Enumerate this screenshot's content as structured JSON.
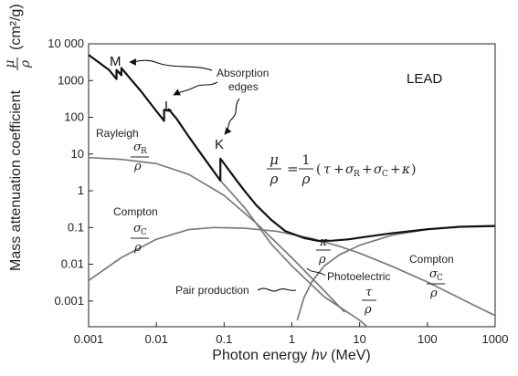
{
  "chart_data": {
    "type": "line",
    "title": "",
    "panel_label": "LEAD",
    "xlabel_prefix": "Photon energy ",
    "xlabel_symbol": "hν",
    "xlabel_unit": " (MeV)",
    "ylabel_text": "Mass attenuation coefficient",
    "ylabel_unit": "(cm²/g)",
    "symbols": {
      "mu": "μ",
      "rho": "ρ",
      "tau": "τ",
      "kappa": "κ",
      "sigma": "σ"
    },
    "x_scale": "log",
    "y_scale": "log",
    "xlim": [
      0.001,
      1000
    ],
    "ylim": [
      0.0002,
      10000
    ],
    "grid": false,
    "x_ticks": [
      "0.001",
      "0.01",
      "0.1",
      "1",
      "10",
      "100",
      "1000"
    ],
    "y_ticks": [
      "10 000",
      "1000",
      "100",
      "10",
      "1",
      "0.1",
      "0.01",
      "0.001"
    ],
    "x_tick_values": [
      0.001,
      0.01,
      0.1,
      1,
      10,
      100,
      1000
    ],
    "y_tick_values": [
      10000,
      1000,
      100,
      10,
      1,
      0.1,
      0.01,
      0.001
    ],
    "series": [
      {
        "id": "total",
        "style": "black-thick",
        "points": [
          [
            0.001,
            5000
          ],
          [
            0.002,
            1950
          ],
          [
            0.00258,
            1100
          ],
          [
            0.00258,
            1950
          ],
          [
            0.00304,
            1400
          ],
          [
            0.00304,
            2200
          ],
          [
            0.004,
            1200
          ],
          [
            0.006,
            500
          ],
          [
            0.008,
            250
          ],
          [
            0.013,
            80
          ],
          [
            0.013,
            160
          ],
          [
            0.0152,
            150
          ],
          [
            0.0152,
            165
          ],
          [
            0.0159,
            150
          ],
          [
            0.02,
            90
          ],
          [
            0.03,
            30
          ],
          [
            0.05,
            8
          ],
          [
            0.088,
            1.9
          ],
          [
            0.088,
            7.5
          ],
          [
            0.1,
            5.5
          ],
          [
            0.15,
            2.0
          ],
          [
            0.2,
            1.0
          ],
          [
            0.3,
            0.4
          ],
          [
            0.5,
            0.16
          ],
          [
            0.8,
            0.08
          ],
          [
            1.5,
            0.052
          ],
          [
            2.5,
            0.043
          ],
          [
            4,
            0.044
          ],
          [
            7,
            0.048
          ],
          [
            10,
            0.053
          ],
          [
            30,
            0.07
          ],
          [
            100,
            0.09
          ],
          [
            300,
            0.105
          ],
          [
            1000,
            0.11
          ]
        ]
      },
      {
        "id": "rayleigh",
        "style": "gray",
        "points": [
          [
            0.001,
            8
          ],
          [
            0.003,
            7.2
          ],
          [
            0.01,
            5.5
          ],
          [
            0.03,
            2.8
          ],
          [
            0.1,
            0.75
          ],
          [
            0.3,
            0.13
          ],
          [
            1,
            0.015
          ],
          [
            3,
            0.0019
          ],
          [
            6,
            0.0005
          ]
        ]
      },
      {
        "id": "compton",
        "style": "gray",
        "points": [
          [
            0.001,
            0.0036
          ],
          [
            0.003,
            0.015
          ],
          [
            0.01,
            0.048
          ],
          [
            0.03,
            0.088
          ],
          [
            0.07,
            0.1
          ],
          [
            0.2,
            0.096
          ],
          [
            0.6,
            0.079
          ],
          [
            2,
            0.05
          ],
          [
            5,
            0.031
          ],
          [
            10,
            0.02
          ],
          [
            30,
            0.0088
          ],
          [
            100,
            0.0033
          ],
          [
            300,
            0.0012
          ],
          [
            1000,
            0.0004
          ]
        ]
      },
      {
        "id": "photoelectric",
        "style": "gray",
        "points": [
          [
            0.088,
            1.9
          ],
          [
            0.2,
            0.35
          ],
          [
            0.5,
            0.035
          ],
          [
            1,
            0.009
          ],
          [
            3,
            0.0013
          ],
          [
            10,
            0.0003
          ],
          [
            20,
            0.0001
          ]
        ]
      },
      {
        "id": "pair",
        "style": "gray",
        "points": [
          [
            1.2,
            0.0003
          ],
          [
            1.5,
            0.0012
          ],
          [
            2,
            0.0035
          ],
          [
            3,
            0.009
          ],
          [
            5,
            0.018
          ],
          [
            10,
            0.033
          ],
          [
            30,
            0.062
          ],
          [
            100,
            0.089
          ],
          [
            300,
            0.105
          ],
          [
            1000,
            0.112
          ]
        ]
      }
    ],
    "edges": [
      {
        "letter": "M",
        "arrow_to": [
          0.00304,
          2200
        ]
      },
      {
        "letter": "L",
        "arrow_to": [
          0.0152,
          165
        ]
      },
      {
        "letter": "K",
        "arrow_to": [
          0.088,
          7.5
        ]
      }
    ],
    "annotations": {
      "absorption": [
        "Absorption",
        "edges"
      ],
      "rayleigh": "Rayleigh",
      "compton_left": "Compton",
      "compton_right": "Compton",
      "photoelectric": "Photoelectric",
      "pair_production": "Pair production",
      "sub_r": "R",
      "sub_c": "C",
      "eq_sign": "=",
      "numerator_one": "1",
      "plus": "+"
    }
  }
}
